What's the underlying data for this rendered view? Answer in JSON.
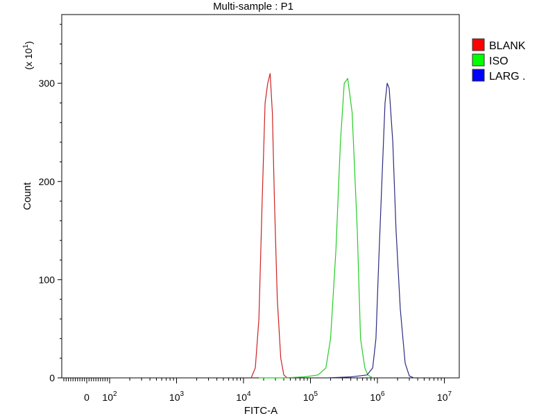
{
  "chart_data": {
    "type": "line",
    "title": "Multi-sample : P1",
    "xlabel": "FITC-A",
    "ylabel": "Count",
    "y_multiplier_label": "(x 10",
    "y_multiplier_exp": "1",
    "y_multiplier_close": ")",
    "x_scale": "logicle",
    "ylim": [
      0,
      370
    ],
    "y_ticks": [
      0,
      100,
      200,
      300
    ],
    "x_ticks": [
      {
        "value": 0,
        "base": "0",
        "exp": ""
      },
      {
        "value": 100,
        "base": "10",
        "exp": "2"
      },
      {
        "value": 1000,
        "base": "10",
        "exp": "3"
      },
      {
        "value": 10000,
        "base": "10",
        "exp": "4"
      },
      {
        "value": 100000,
        "base": "10",
        "exp": "5"
      },
      {
        "value": 1000000,
        "base": "10",
        "exp": "6"
      },
      {
        "value": 10000000,
        "base": "10",
        "exp": "7"
      }
    ],
    "legend_position": "right",
    "grid": false,
    "series": [
      {
        "name": "BLANK",
        "color": "#cc2020",
        "legend_color": "#ff0000",
        "x": [
          13000,
          15000,
          17000,
          19000,
          21000,
          23000,
          25000,
          27000,
          29000,
          32000,
          36000,
          40000,
          45000
        ],
        "y": [
          0,
          10,
          60,
          180,
          280,
          300,
          310,
          270,
          180,
          80,
          20,
          3,
          0
        ]
      },
      {
        "name": "ISO",
        "color": "#22cc22",
        "legend_color": "#00ff00",
        "x": [
          17000,
          40000,
          80000,
          130000,
          170000,
          200000,
          240000,
          280000,
          320000,
          360000,
          420000,
          500000,
          560000,
          650000,
          720000,
          800000,
          870000
        ],
        "y": [
          0,
          0,
          1,
          3,
          10,
          40,
          130,
          240,
          300,
          305,
          270,
          150,
          40,
          10,
          3,
          1,
          0
        ]
      },
      {
        "name": "LARG .",
        "color": "#2a2a80",
        "legend_color": "#0000ff",
        "x": [
          180000,
          400000,
          700000,
          850000,
          950000,
          1050000,
          1200000,
          1300000,
          1400000,
          1500000,
          1700000,
          1900000,
          2200000,
          2600000,
          3000000,
          3500000
        ],
        "y": [
          0,
          1,
          3,
          10,
          40,
          120,
          220,
          280,
          300,
          295,
          240,
          150,
          70,
          15,
          2,
          0
        ]
      }
    ]
  }
}
